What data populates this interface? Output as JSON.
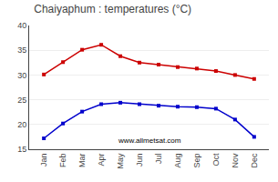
{
  "chart_data": {
    "type": "line",
    "title": "Chaiyaphum : temperatures (°C)",
    "categories": [
      "Jan",
      "Feb",
      "Mar",
      "Apr",
      "May",
      "Jun",
      "Jul",
      "Aug",
      "Sep",
      "Oct",
      "Nov",
      "Dec"
    ],
    "series": [
      {
        "color": "#cc0000",
        "marker": "square",
        "values": [
          30.1,
          32.6,
          35.1,
          36.1,
          33.8,
          32.5,
          32.1,
          31.6,
          31.3,
          30.8,
          30.0,
          29.2
        ]
      },
      {
        "color": "#0000cc",
        "marker": "square",
        "values": [
          17.2,
          20.2,
          22.6,
          24.1,
          24.4,
          24.1,
          23.8,
          23.6,
          23.5,
          23.2,
          21.0,
          17.5
        ]
      }
    ],
    "ylim": [
      15,
      40
    ],
    "yticks": [
      15,
      20,
      25,
      30,
      35,
      40
    ],
    "grid": true,
    "annotations": [
      "www.allmetsat.com"
    ]
  }
}
